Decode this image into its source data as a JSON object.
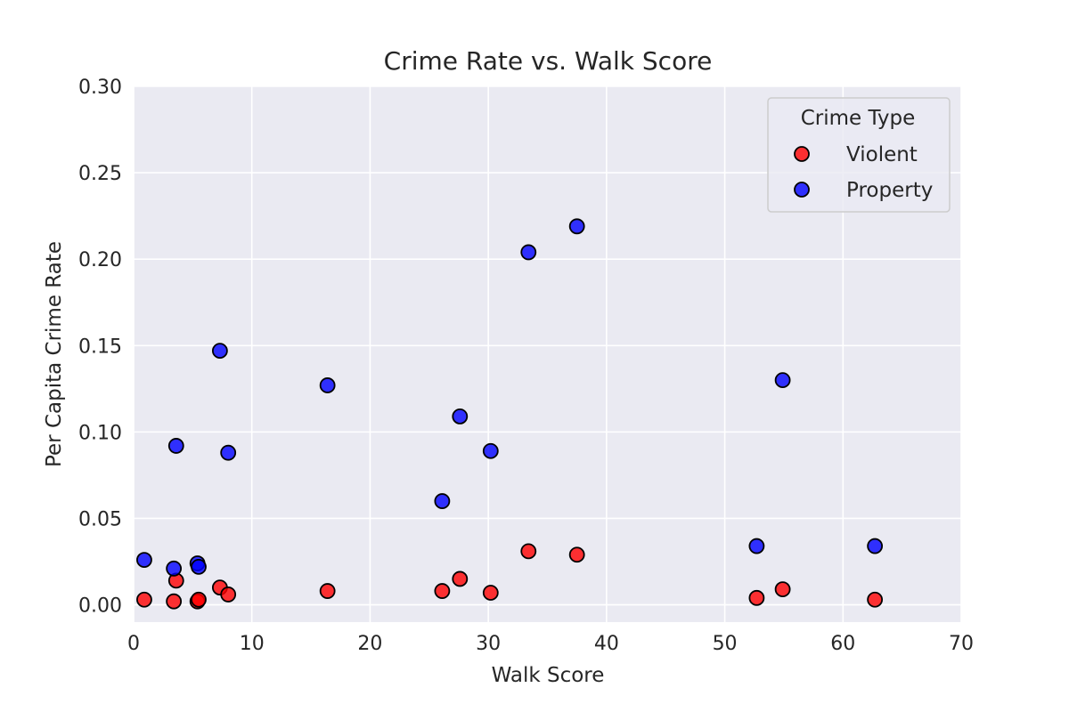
{
  "chart_data": {
    "type": "scatter",
    "title": "Crime Rate vs. Walk Score",
    "xlabel": "Walk Score",
    "ylabel": "Per Capita Crime Rate",
    "xlim": [
      0,
      70
    ],
    "ylim": [
      -0.01,
      0.3
    ],
    "xticks": [
      0,
      10,
      20,
      30,
      40,
      50,
      60,
      70
    ],
    "yticks": [
      0.0,
      0.05,
      0.1,
      0.15,
      0.2,
      0.25,
      0.3
    ],
    "xtick_labels": [
      "0",
      "10",
      "20",
      "30",
      "40",
      "50",
      "60",
      "70"
    ],
    "ytick_labels": [
      "0.00",
      "0.05",
      "0.10",
      "0.15",
      "0.20",
      "0.25",
      "0.30"
    ],
    "grid": true,
    "background": "#eaeaf2",
    "legend": {
      "title": "Crime Type",
      "placement": "top-right"
    },
    "series": [
      {
        "name": "Violent",
        "color": "#ff0000",
        "points": [
          [
            0.9,
            0.003
          ],
          [
            3.4,
            0.002
          ],
          [
            3.6,
            0.014
          ],
          [
            5.4,
            0.002
          ],
          [
            5.5,
            0.003
          ],
          [
            7.3,
            0.01
          ],
          [
            8.0,
            0.006
          ],
          [
            16.4,
            0.008
          ],
          [
            26.1,
            0.008
          ],
          [
            27.6,
            0.015
          ],
          [
            30.2,
            0.007
          ],
          [
            33.4,
            0.031
          ],
          [
            37.5,
            0.029
          ],
          [
            52.7,
            0.004
          ],
          [
            54.9,
            0.009
          ],
          [
            62.7,
            0.003
          ]
        ]
      },
      {
        "name": "Property",
        "color": "#0000ff",
        "points": [
          [
            0.9,
            0.026
          ],
          [
            3.4,
            0.021
          ],
          [
            3.6,
            0.092
          ],
          [
            5.4,
            0.024
          ],
          [
            5.5,
            0.022
          ],
          [
            7.3,
            0.147
          ],
          [
            8.0,
            0.088
          ],
          [
            16.4,
            0.127
          ],
          [
            26.1,
            0.06
          ],
          [
            27.6,
            0.109
          ],
          [
            30.2,
            0.089
          ],
          [
            33.4,
            0.204
          ],
          [
            37.5,
            0.219
          ],
          [
            52.7,
            0.034
          ],
          [
            54.9,
            0.13
          ],
          [
            62.7,
            0.034
          ]
        ]
      }
    ]
  }
}
